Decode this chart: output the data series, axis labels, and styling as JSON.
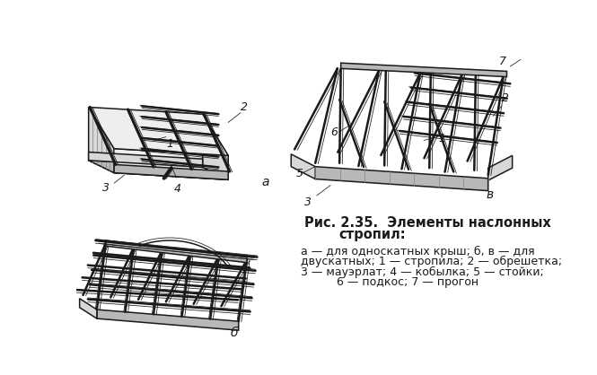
{
  "bg_color": "#ffffff",
  "line_color": "#1a1a1a",
  "fig_width": 6.65,
  "fig_height": 4.18,
  "dpi": 100,
  "title_bold": "Рис. 2.35.  Элементы наслонных\n       стропил:",
  "caption_line1": " а — для односкатных крыш; б, в — для",
  "caption_line2": "двускатных;  1 — стропила; 2 — обрешетка;",
  "caption_line3": "3 — мауэрлат; 4 — кобылка; 5 — стойки;",
  "caption_line4": "      6 — подкос; 7 — прогон",
  "lw_thick": 1.8,
  "lw_med": 1.1,
  "lw_thin": 0.55,
  "gray_dark": "#888888",
  "gray_mid": "#b8b8b8",
  "gray_light": "#d8d8d8",
  "gray_vlight": "#eeeeee",
  "hatch_gray": "#999999"
}
